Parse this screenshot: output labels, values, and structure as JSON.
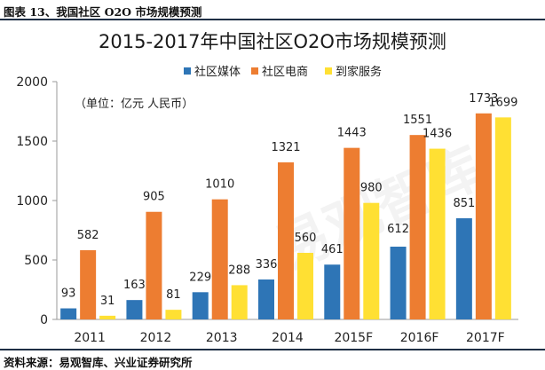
{
  "caption": "图表 13、我国社区 O2O 市场规模预测",
  "source": "资料来源：易观智库、兴业证券研究所",
  "watermark": "易观智库",
  "chart_data": {
    "type": "bar",
    "title": "2015-2017年中国社区O2O市场规模预测",
    "unit_note": "（单位：亿元 人民币）",
    "categories": [
      "2011",
      "2012",
      "2013",
      "2014",
      "2015F",
      "2016F",
      "2017F"
    ],
    "series": [
      {
        "name": "社区媒体",
        "color": "#2e75b6",
        "values": [
          93,
          163,
          229,
          336,
          461,
          612,
          851
        ]
      },
      {
        "name": "社区电商",
        "color": "#ed7d31",
        "values": [
          582,
          905,
          1010,
          1321,
          1443,
          1551,
          1733
        ]
      },
      {
        "name": "到家服务",
        "color": "#ffe033",
        "values": [
          31,
          81,
          288,
          560,
          980,
          1436,
          1699
        ]
      }
    ],
    "y_ticks": [
      "0",
      "500",
      "1000",
      "1500",
      "2000"
    ],
    "ylim": [
      0,
      2000
    ],
    "grid": false,
    "legend_position": "top-center"
  }
}
